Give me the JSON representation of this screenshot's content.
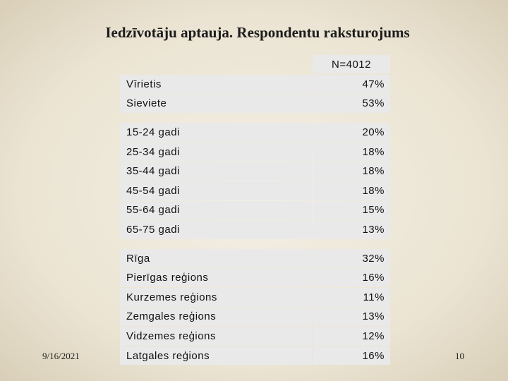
{
  "header": {
    "title": "Iedzīvotāju aptauja. Respondentu raksturojums"
  },
  "table": {
    "header": "N=4012",
    "groups": [
      [
        [
          "Vīrietis",
          "47%"
        ],
        [
          "Sieviete",
          "53%"
        ]
      ],
      [
        [
          "15-24 gadi",
          "20%"
        ],
        [
          "25-34 gadi",
          "18%"
        ],
        [
          "35-44 gadi",
          "18%"
        ],
        [
          "45-54 gadi",
          "18%"
        ],
        [
          "55-64 gadi",
          "15%"
        ],
        [
          "65-75 gadi",
          "13%"
        ]
      ],
      [
        [
          "Rīga",
          "32%"
        ],
        [
          "Pierīgas reģions",
          "16%"
        ],
        [
          "Kurzemes reģions",
          "11%"
        ],
        [
          "Zemgales reģions",
          "13%"
        ],
        [
          "Vidzemes reģions",
          "12%"
        ],
        [
          "Latgales reģions",
          "16%"
        ]
      ]
    ]
  },
  "footer": {
    "date": "9/16/2021",
    "page": "10"
  }
}
